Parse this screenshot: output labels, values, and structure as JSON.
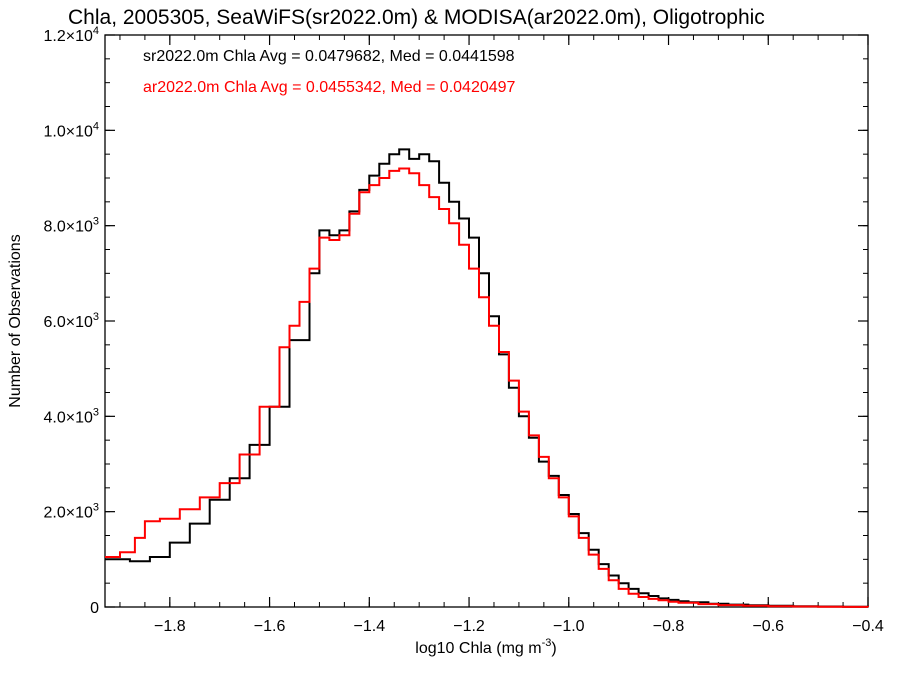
{
  "chart_data": {
    "type": "line",
    "title": "Chla, 2005305, SeaWiFS(sr2022.0m) & MODISA(ar2022.0m), Oligotrophic",
    "xlabel": "log10 Chla (mg m",
    "xlabel_superscript": "-3",
    "xlabel_suffix": ")",
    "ylabel": "Number of Observations",
    "xlim": [
      -1.93,
      -0.4
    ],
    "ylim": [
      0,
      12000
    ],
    "x_ticks": [
      -1.8,
      -1.6,
      -1.4,
      -1.2,
      -1.0,
      -0.8,
      -0.6,
      -0.4
    ],
    "x_tick_labels": [
      "−1.8",
      "−1.6",
      "−1.4",
      "−1.2",
      "−1.0",
      "−0.8",
      "−0.6",
      "−0.4"
    ],
    "y_ticks": [
      0,
      2000,
      4000,
      6000,
      8000,
      10000,
      12000
    ],
    "y_tick_labels": [
      {
        "mant": "0",
        "exp": ""
      },
      {
        "mant": "2.0×10",
        "exp": "3"
      },
      {
        "mant": "4.0×10",
        "exp": "3"
      },
      {
        "mant": "6.0×10",
        "exp": "3"
      },
      {
        "mant": "8.0×10",
        "exp": "3"
      },
      {
        "mant": "1.0×10",
        "exp": "4"
      },
      {
        "mant": "1.2×10",
        "exp": "4"
      }
    ],
    "annotations": [
      {
        "text": "sr2022.0m Chla Avg = 0.0479682, Med = 0.0441598",
        "color": "#000000"
      },
      {
        "text": "ar2022.0m Chla Avg = 0.0455342, Med = 0.0420497",
        "color": "#ff0000"
      }
    ],
    "series": [
      {
        "name": "sr2022.0m",
        "color": "#000000",
        "style": "step",
        "x": [
          -1.93,
          -1.88,
          -1.84,
          -1.8,
          -1.76,
          -1.72,
          -1.68,
          -1.64,
          -1.6,
          -1.56,
          -1.52,
          -1.5,
          -1.48,
          -1.46,
          -1.44,
          -1.42,
          -1.4,
          -1.38,
          -1.36,
          -1.34,
          -1.32,
          -1.3,
          -1.28,
          -1.26,
          -1.24,
          -1.22,
          -1.2,
          -1.18,
          -1.16,
          -1.14,
          -1.12,
          -1.1,
          -1.08,
          -1.06,
          -1.04,
          -1.02,
          -1.0,
          -0.98,
          -0.96,
          -0.94,
          -0.92,
          -0.9,
          -0.88,
          -0.86,
          -0.84,
          -0.82,
          -0.8,
          -0.78,
          -0.76,
          -0.72,
          -0.68,
          -0.64,
          -0.6,
          -0.55,
          -0.5,
          -0.45,
          -0.4
        ],
        "y": [
          1000,
          960,
          1050,
          1350,
          1750,
          2250,
          2700,
          3400,
          4200,
          5600,
          7000,
          7900,
          7800,
          7900,
          8300,
          8750,
          9050,
          9300,
          9500,
          9600,
          9400,
          9500,
          9350,
          8900,
          8500,
          8150,
          7750,
          7000,
          6100,
          5300,
          4600,
          4000,
          3550,
          3050,
          2750,
          2350,
          1950,
          1550,
          1200,
          900,
          660,
          500,
          380,
          290,
          230,
          180,
          150,
          120,
          100,
          70,
          50,
          35,
          25,
          15,
          10,
          5,
          0
        ]
      },
      {
        "name": "ar2022.0m",
        "color": "#ff0000",
        "style": "step",
        "x": [
          -1.93,
          -1.9,
          -1.87,
          -1.85,
          -1.82,
          -1.78,
          -1.74,
          -1.7,
          -1.66,
          -1.62,
          -1.58,
          -1.56,
          -1.54,
          -1.52,
          -1.5,
          -1.48,
          -1.46,
          -1.44,
          -1.42,
          -1.4,
          -1.38,
          -1.36,
          -1.34,
          -1.32,
          -1.3,
          -1.28,
          -1.26,
          -1.24,
          -1.22,
          -1.2,
          -1.18,
          -1.16,
          -1.14,
          -1.12,
          -1.1,
          -1.08,
          -1.06,
          -1.04,
          -1.02,
          -1.0,
          -0.98,
          -0.96,
          -0.94,
          -0.92,
          -0.9,
          -0.88,
          -0.86,
          -0.84,
          -0.82,
          -0.8,
          -0.78,
          -0.74,
          -0.7,
          -0.65,
          -0.6,
          -0.55,
          -0.5,
          -0.45,
          -0.4
        ],
        "y": [
          1050,
          1150,
          1450,
          1800,
          1850,
          2050,
          2300,
          2600,
          3200,
          4200,
          5450,
          5900,
          6400,
          7100,
          7750,
          7700,
          7800,
          8250,
          8700,
          8850,
          9000,
          9150,
          9200,
          9100,
          8850,
          8600,
          8350,
          8050,
          7600,
          7100,
          6500,
          5900,
          5350,
          4750,
          4100,
          3600,
          3150,
          2700,
          2300,
          1900,
          1450,
          1100,
          800,
          560,
          380,
          280,
          210,
          170,
          140,
          110,
          90,
          60,
          40,
          25,
          15,
          10,
          5,
          2,
          0
        ]
      }
    ]
  }
}
